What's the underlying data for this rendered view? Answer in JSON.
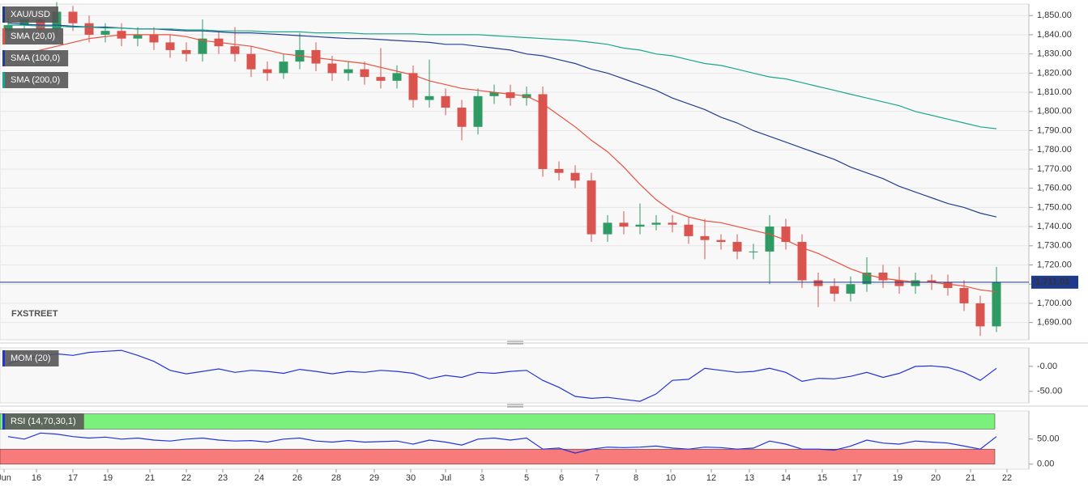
{
  "chart_data": [
    {
      "type": "candlestick",
      "name": "XAU/USD",
      "up_color": "#2f9a63",
      "down_color": "#d9534f",
      "xlim": [
        0,
        127
      ],
      "xticks": [
        {
          "value": 0.5,
          "label": "Jun"
        },
        {
          "value": 4.5,
          "label": "16"
        },
        {
          "value": 9,
          "label": "17"
        },
        {
          "value": 13.3,
          "label": "19"
        },
        {
          "value": 18.5,
          "label": "21"
        },
        {
          "value": 23,
          "label": "22"
        },
        {
          "value": 27.5,
          "label": "23"
        },
        {
          "value": 32,
          "label": "24"
        },
        {
          "value": 36.7,
          "label": "26"
        },
        {
          "value": 41.5,
          "label": "28"
        },
        {
          "value": 46.2,
          "label": "29"
        },
        {
          "value": 50.7,
          "label": "30"
        },
        {
          "value": 55,
          "label": "Jul"
        },
        {
          "value": 59.5,
          "label": "3"
        },
        {
          "value": 65,
          "label": "5"
        },
        {
          "value": 69.3,
          "label": "6"
        },
        {
          "value": 73.7,
          "label": "7"
        },
        {
          "value": 78.5,
          "label": "8"
        },
        {
          "value": 82.8,
          "label": "10"
        },
        {
          "value": 87.8,
          "label": "12"
        },
        {
          "value": 92.5,
          "label": "13"
        },
        {
          "value": 97,
          "label": "14"
        },
        {
          "value": 101.5,
          "label": "15"
        },
        {
          "value": 105.8,
          "label": "17"
        },
        {
          "value": 110.8,
          "label": "19"
        },
        {
          "value": 115.5,
          "label": "20"
        },
        {
          "value": 119.8,
          "label": "21"
        },
        {
          "value": 124.3,
          "label": "22"
        }
      ],
      "ylim": [
        1681,
        1856
      ],
      "yticks": [
        {
          "value": 1690,
          "label": "1,690.00"
        },
        {
          "value": 1700,
          "label": "1,700.00"
        },
        {
          "value": 1710,
          "label": "1,710.00"
        },
        {
          "value": 1720,
          "label": "1,720.00"
        },
        {
          "value": 1730,
          "label": "1,730.00"
        },
        {
          "value": 1740,
          "label": "1,740.00"
        },
        {
          "value": 1750,
          "label": "1,750.00"
        },
        {
          "value": 1760,
          "label": "1,760.00"
        },
        {
          "value": 1770,
          "label": "1,770.00"
        },
        {
          "value": 1780,
          "label": "1,780.00"
        },
        {
          "value": 1790,
          "label": "1,790.00"
        },
        {
          "value": 1800,
          "label": "1,800.00"
        },
        {
          "value": 1810,
          "label": "1,810.00"
        },
        {
          "value": 1820,
          "label": "1,820.00"
        },
        {
          "value": 1830,
          "label": "1,830.00"
        },
        {
          "value": 1840,
          "label": "1,840.00"
        },
        {
          "value": 1850,
          "label": "1,850.00"
        }
      ],
      "grid": true,
      "last_price": {
        "value": 1711.01,
        "label": "1,711.01"
      },
      "last_price_color": "#1f3a8a",
      "watermark": "FXSTREET",
      "x": [
        1,
        3,
        5,
        7,
        9,
        11,
        13,
        15,
        17,
        19,
        21,
        23,
        25,
        27,
        29,
        31,
        33,
        35,
        37,
        39,
        41,
        43,
        45,
        47,
        49,
        51,
        53,
        55,
        57,
        59,
        61,
        63,
        65,
        67,
        69,
        71,
        73,
        75,
        77,
        79,
        81,
        83,
        85,
        87,
        89,
        91,
        93,
        95,
        97,
        99,
        101,
        103,
        105,
        107,
        109,
        111,
        113,
        115,
        117,
        119,
        121,
        123
      ],
      "open": [
        1842,
        1845,
        1848,
        1843,
        1852,
        1846,
        1840,
        1842,
        1838,
        1840,
        1836,
        1832,
        1830,
        1838,
        1834,
        1830,
        1822,
        1820,
        1826,
        1832,
        1825,
        1820,
        1822,
        1818,
        1816,
        1820,
        1806,
        1808,
        1802,
        1792,
        1808,
        1810,
        1807,
        1809,
        1770,
        1768,
        1764,
        1736,
        1742,
        1740,
        1741,
        1742,
        1741,
        1735,
        1733,
        1732,
        1727,
        1727,
        1740,
        1732,
        1712,
        1709,
        1705,
        1710,
        1716,
        1712,
        1709,
        1712,
        1711,
        1708,
        1700,
        1688
      ],
      "high": [
        1849,
        1852,
        1852,
        1857,
        1855,
        1850,
        1846,
        1846,
        1844,
        1844,
        1840,
        1836,
        1848,
        1842,
        1844,
        1834,
        1826,
        1830,
        1841,
        1836,
        1829,
        1826,
        1826,
        1833,
        1824,
        1824,
        1827,
        1812,
        1806,
        1812,
        1814,
        1814,
        1813,
        1813,
        1774,
        1772,
        1768,
        1746,
        1748,
        1752,
        1746,
        1746,
        1745,
        1744,
        1736,
        1736,
        1731,
        1746,
        1744,
        1736,
        1716,
        1713,
        1714,
        1724,
        1720,
        1719,
        1716,
        1715,
        1715,
        1712,
        1704,
        1719
      ],
      "low": [
        1838,
        1841,
        1839,
        1839,
        1842,
        1836,
        1836,
        1834,
        1834,
        1832,
        1828,
        1826,
        1826,
        1830,
        1826,
        1818,
        1816,
        1817,
        1822,
        1821,
        1816,
        1816,
        1814,
        1812,
        1812,
        1802,
        1802,
        1798,
        1785,
        1788,
        1804,
        1803,
        1803,
        1766,
        1764,
        1760,
        1732,
        1732,
        1736,
        1736,
        1738,
        1737,
        1731,
        1723,
        1728,
        1723,
        1723,
        1710,
        1728,
        1708,
        1698,
        1701,
        1701,
        1706,
        1708,
        1705,
        1705,
        1707,
        1704,
        1696,
        1683,
        1685
      ],
      "close": [
        1845,
        1848,
        1843,
        1852,
        1846,
        1840,
        1842,
        1838,
        1840,
        1836,
        1832,
        1830,
        1838,
        1834,
        1830,
        1822,
        1820,
        1826,
        1832,
        1825,
        1820,
        1822,
        1818,
        1816,
        1820,
        1806,
        1808,
        1802,
        1792,
        1808,
        1810,
        1807,
        1809,
        1770,
        1768,
        1764,
        1736,
        1742,
        1740,
        1741,
        1742,
        1741,
        1735,
        1733,
        1732,
        1727,
        1727,
        1740,
        1732,
        1712,
        1709,
        1705,
        1710,
        1716,
        1712,
        1709,
        1712,
        1711,
        1708,
        1700,
        1688,
        1711.01
      ],
      "series": [
        {
          "name": "SMA (20,0)",
          "color": "#e8523f",
          "values": [
            1826,
            1830,
            1832,
            1834,
            1836,
            1838,
            1839,
            1840,
            1840,
            1840,
            1840,
            1839,
            1837,
            1836,
            1835,
            1834,
            1832,
            1830,
            1829,
            1828,
            1827,
            1826,
            1825,
            1823,
            1821,
            1819,
            1816,
            1814,
            1812,
            1811,
            1810,
            1809,
            1808,
            1804,
            1798,
            1792,
            1785,
            1779,
            1771,
            1762,
            1754,
            1748,
            1745,
            1743,
            1742,
            1740,
            1738,
            1736,
            1733,
            1729,
            1726,
            1722,
            1718,
            1715,
            1713,
            1712,
            1711,
            1711,
            1710,
            1709,
            1707,
            1706
          ]
        },
        {
          "name": "SMA (100,0)",
          "color": "#23408f",
          "values": [
            1846,
            1845.5,
            1845,
            1845,
            1844.5,
            1844,
            1844,
            1843.5,
            1843,
            1843,
            1842.5,
            1842,
            1842,
            1841.5,
            1841,
            1841,
            1840.5,
            1840,
            1839.5,
            1839,
            1838.5,
            1838,
            1838,
            1837.5,
            1837,
            1836.5,
            1836,
            1835,
            1835,
            1834,
            1833,
            1832,
            1830,
            1829,
            1827,
            1825,
            1822,
            1820,
            1817,
            1814,
            1811,
            1807,
            1804,
            1801,
            1797,
            1794,
            1790,
            1787,
            1784,
            1781,
            1778,
            1775,
            1771,
            1768,
            1765,
            1761,
            1758,
            1755,
            1752,
            1750,
            1747,
            1745
          ]
        },
        {
          "name": "SMA (200,0)",
          "color": "#1aa88a",
          "values": [
            1845,
            1845,
            1844.5,
            1844.5,
            1844,
            1844,
            1843.5,
            1843.5,
            1843,
            1843,
            1843,
            1842.5,
            1842.5,
            1842,
            1842,
            1842,
            1841.5,
            1841.5,
            1841.5,
            1841,
            1841,
            1841,
            1840.5,
            1840.5,
            1840.5,
            1840.5,
            1840,
            1840,
            1840,
            1840,
            1839.5,
            1839,
            1838.5,
            1838,
            1837.5,
            1837,
            1836,
            1835,
            1833,
            1832,
            1830,
            1829,
            1827,
            1825,
            1824,
            1822,
            1820,
            1818,
            1817,
            1815,
            1813,
            1811,
            1809,
            1807,
            1805,
            1803,
            1800,
            1798,
            1796,
            1794,
            1792,
            1791
          ]
        }
      ]
    },
    {
      "type": "line",
      "ylim": [
        -73,
        37
      ],
      "yticks": [
        {
          "value": 0,
          "label": "-0.00"
        },
        {
          "value": -50,
          "label": "-50.00"
        }
      ],
      "x": [
        1,
        3,
        5,
        7,
        9,
        11,
        13,
        15,
        17,
        19,
        21,
        23,
        25,
        27,
        29,
        31,
        33,
        35,
        37,
        39,
        41,
        43,
        45,
        47,
        49,
        51,
        53,
        55,
        57,
        59,
        61,
        63,
        65,
        67,
        69,
        71,
        73,
        75,
        77,
        79,
        81,
        83,
        85,
        87,
        89,
        91,
        93,
        95,
        97,
        99,
        101,
        103,
        105,
        107,
        109,
        111,
        113,
        115,
        117,
        119,
        121,
        123
      ],
      "series": [
        {
          "name": "MOM (20)",
          "color": "#2233dd",
          "values": [
            5,
            15,
            20,
            25,
            22,
            28,
            30,
            32,
            22,
            10,
            -8,
            -15,
            -10,
            -5,
            -12,
            -8,
            -10,
            -14,
            -6,
            -10,
            -15,
            -10,
            -12,
            -8,
            -10,
            -14,
            -25,
            -18,
            -22,
            -12,
            -14,
            -10,
            -8,
            -28,
            -42,
            -60,
            -64,
            -62,
            -66,
            -70,
            -55,
            -28,
            -26,
            -4,
            -8,
            -12,
            -10,
            -4,
            -12,
            -30,
            -24,
            -25,
            -20,
            -12,
            -22,
            -14,
            0,
            1,
            -2,
            -12,
            -28,
            -4
          ]
        }
      ]
    },
    {
      "type": "line",
      "ylim": [
        -10,
        106
      ],
      "yticks": [
        {
          "value": 50,
          "label": "50.00"
        },
        {
          "value": 0,
          "label": "0.00"
        }
      ],
      "overbought_band": [
        70,
        100
      ],
      "overbought_color": "#7cf07c",
      "oversold_band": [
        0,
        30
      ],
      "oversold_color": "#f77b7b",
      "x": [
        1,
        3,
        5,
        7,
        9,
        11,
        13,
        15,
        17,
        19,
        21,
        23,
        25,
        27,
        29,
        31,
        33,
        35,
        37,
        39,
        41,
        43,
        45,
        47,
        49,
        51,
        53,
        55,
        57,
        59,
        61,
        63,
        65,
        67,
        69,
        71,
        73,
        75,
        77,
        79,
        81,
        83,
        85,
        87,
        89,
        91,
        93,
        95,
        97,
        99,
        101,
        103,
        105,
        107,
        109,
        111,
        113,
        115,
        117,
        119,
        121,
        123
      ],
      "series": [
        {
          "name": "RSI (14,70,30,1)",
          "color": "#2233dd",
          "values": [
            55,
            50,
            62,
            60,
            55,
            52,
            54,
            50,
            52,
            48,
            46,
            50,
            52,
            48,
            46,
            47,
            44,
            50,
            52,
            46,
            44,
            47,
            44,
            45,
            46,
            40,
            48,
            44,
            38,
            50,
            52,
            48,
            52,
            30,
            32,
            22,
            30,
            34,
            33,
            34,
            36,
            32,
            30,
            34,
            33,
            30,
            32,
            46,
            40,
            30,
            30,
            28,
            36,
            48,
            42,
            40,
            46,
            44,
            42,
            36,
            30,
            55
          ]
        }
      ]
    }
  ]
}
